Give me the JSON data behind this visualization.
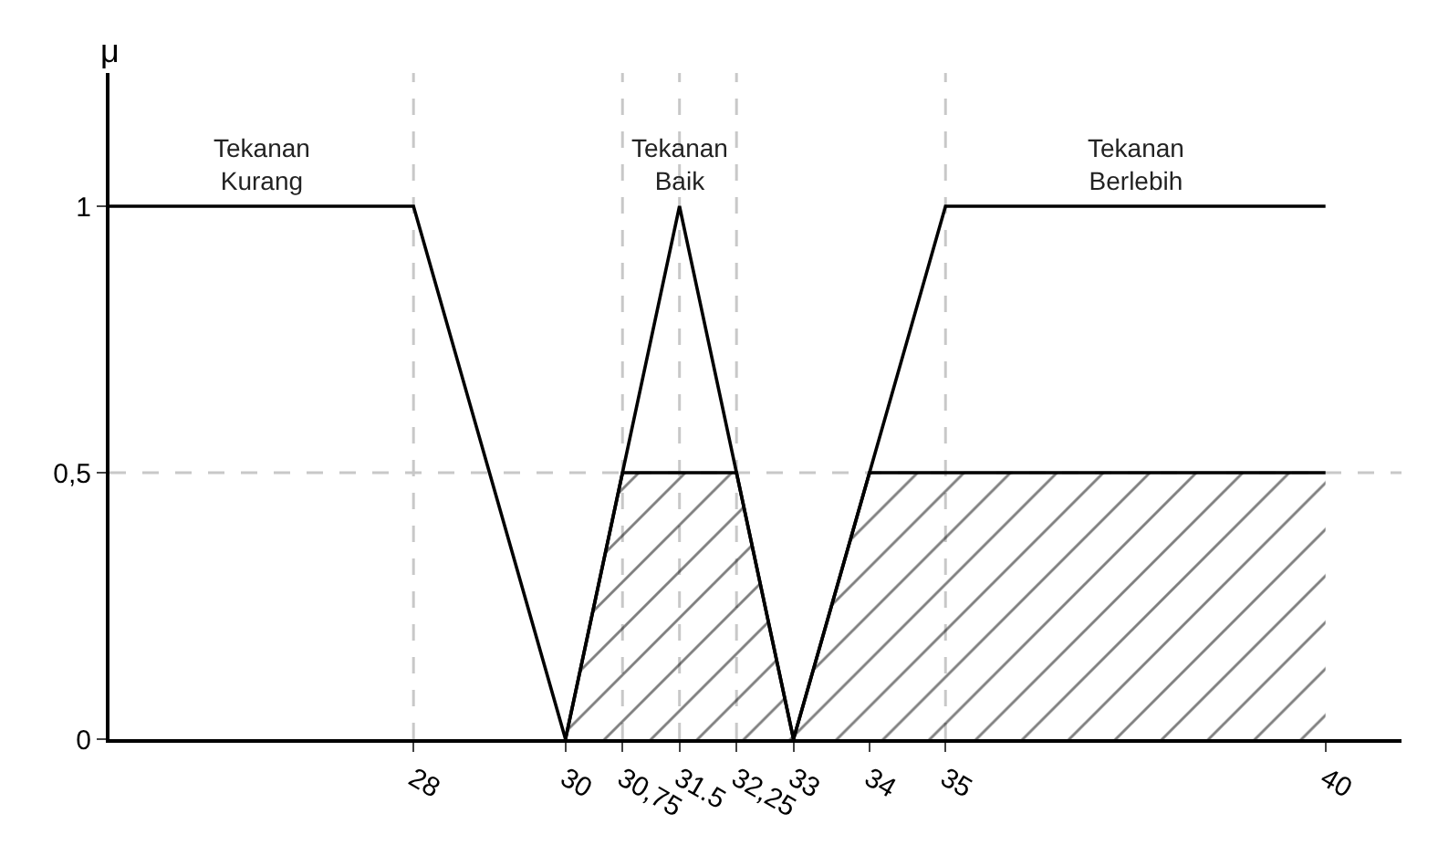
{
  "chart_data": {
    "type": "line",
    "ylabel": "μ",
    "xlim": [
      24,
      41
    ],
    "ylim": [
      0,
      1.25
    ],
    "xticks": [
      28,
      30,
      {
        "value": 30.75,
        "label": "30,75"
      },
      31.5,
      {
        "value": 32.25,
        "label": "32,25"
      },
      33,
      34,
      35,
      40
    ],
    "yticks": [
      0,
      {
        "value": 0.5,
        "label": "0,5"
      },
      1
    ],
    "grid": false,
    "legend": false,
    "marker": "none",
    "line_style": "solid",
    "series": [
      {
        "name": "Tekanan Kurang",
        "color": "#000000",
        "x": [
          24,
          28,
          30
        ],
        "values": [
          1,
          1,
          0
        ]
      },
      {
        "name": "Tekanan Baik",
        "color": "#000000",
        "x": [
          30,
          31.5,
          33
        ],
        "values": [
          0,
          1,
          0
        ]
      },
      {
        "name": "Tekanan Berlebih",
        "color": "#000000",
        "x": [
          33,
          35,
          40
        ],
        "values": [
          0,
          1,
          1
        ]
      },
      {
        "type": "area",
        "color": "#000000",
        "x": [
          30,
          30.75,
          32.25,
          33,
          34,
          40
        ],
        "values": [
          0,
          0.5,
          0.5,
          0,
          0.5,
          0.5
        ]
      }
    ],
    "ref_lines": [
      {
        "axis": "x",
        "value": 28,
        "color": "#c8c8c8",
        "line_style": "dashed"
      },
      {
        "axis": "x",
        "value": 30.75,
        "color": "#c8c8c8",
        "line_style": "dashed"
      },
      {
        "axis": "x",
        "value": 31.5,
        "color": "#c8c8c8",
        "line_style": "dashed"
      },
      {
        "axis": "x",
        "value": 32.25,
        "color": "#c8c8c8",
        "line_style": "dashed"
      },
      {
        "axis": "x",
        "value": 35,
        "color": "#c8c8c8",
        "line_style": "dashed"
      },
      {
        "axis": "y",
        "value": 0.5,
        "color": "#c8c8c8",
        "line_style": "dashed"
      }
    ]
  }
}
